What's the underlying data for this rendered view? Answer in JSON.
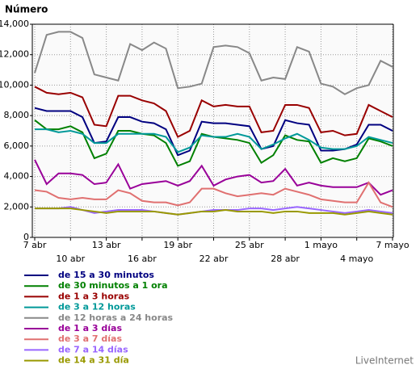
{
  "chart_data": {
    "type": "line",
    "y_label": "Número",
    "watermark": "LiveInternet",
    "categories": [
      "7 abr",
      null,
      null,
      "10 abr",
      null,
      null,
      "13 abr",
      null,
      null,
      "16 abr",
      null,
      null,
      "19 abr",
      null,
      null,
      "22 abr",
      null,
      null,
      "25 abr",
      null,
      null,
      "28 abr",
      null,
      null,
      "1 mayo",
      null,
      null,
      "4 mayo",
      null,
      null,
      "7 mayo"
    ],
    "ylim": [
      0,
      14000
    ],
    "yticks": [
      0,
      {
        "value": 2000,
        "label": "2,000"
      },
      {
        "value": 4000,
        "label": "4,000"
      },
      {
        "value": 6000,
        "label": "6,000"
      },
      {
        "value": 8000,
        "label": "8,000"
      },
      {
        "value": 10000,
        "label": "10,000"
      },
      {
        "value": 12000,
        "label": "12,000"
      },
      {
        "value": 14000,
        "label": "14,000"
      }
    ],
    "grid": true,
    "series": [
      {
        "name": "de 15 a 30 minutos",
        "color": "#000080",
        "values": [
          8500,
          8300,
          8300,
          8300,
          7900,
          6200,
          6300,
          7900,
          7900,
          7600,
          7500,
          7100,
          5400,
          5700,
          7600,
          7500,
          7500,
          7400,
          7300,
          5800,
          6000,
          7700,
          7500,
          7400,
          5700,
          5700,
          5800,
          6100,
          7400,
          7400,
          7000
        ]
      },
      {
        "name": "de 30 minutos a 1 ora",
        "color": "#008000",
        "values": [
          7700,
          7100,
          7100,
          7300,
          6900,
          5200,
          5500,
          7000,
          7000,
          6800,
          6700,
          6200,
          4700,
          5000,
          6800,
          6600,
          6500,
          6400,
          6200,
          4900,
          5400,
          6700,
          6400,
          6300,
          4900,
          5200,
          5000,
          5200,
          6500,
          6300,
          6000
        ]
      },
      {
        "name": "de 1 a 3 horas",
        "color": "#990000",
        "values": [
          9900,
          9500,
          9400,
          9500,
          9200,
          7400,
          7300,
          9300,
          9300,
          9000,
          8800,
          8300,
          6600,
          7000,
          9000,
          8600,
          8700,
          8600,
          8600,
          6900,
          7000,
          8700,
          8700,
          8500,
          6900,
          7000,
          6700,
          6800,
          8700,
          8300,
          7900
        ]
      },
      {
        "name": "de 3 a 12 horas",
        "color": "#009999",
        "values": [
          7100,
          7100,
          6900,
          7000,
          6800,
          6200,
          6200,
          6800,
          6800,
          6800,
          6800,
          6600,
          5600,
          5900,
          6700,
          6600,
          6600,
          6800,
          6600,
          5800,
          6100,
          6500,
          6800,
          6400,
          5900,
          5800,
          5800,
          6000,
          6600,
          6400,
          6200
        ]
      },
      {
        "name": "de 12 horas a 24 horas",
        "color": "#888888",
        "values": [
          10800,
          13300,
          13500,
          13500,
          13100,
          10700,
          10500,
          10300,
          12700,
          12300,
          12800,
          12400,
          9800,
          9900,
          10100,
          12500,
          12600,
          12500,
          12100,
          10300,
          10500,
          10400,
          12500,
          12200,
          10100,
          9900,
          9400,
          9800,
          10000,
          11600,
          11200
        ]
      },
      {
        "name": "de 1 a 3 días",
        "color": "#990099",
        "values": [
          5100,
          3500,
          4200,
          4200,
          4100,
          3500,
          3600,
          4800,
          3200,
          3500,
          3600,
          3700,
          3400,
          3700,
          4700,
          3400,
          3800,
          4000,
          4100,
          3600,
          3700,
          4500,
          3400,
          3600,
          3400,
          3300,
          3300,
          3300,
          3600,
          2800,
          3100
        ]
      },
      {
        "name": "de 3 a 7 días",
        "color": "#e07070",
        "values": [
          3100,
          3000,
          2600,
          2500,
          2600,
          2500,
          2500,
          3100,
          2900,
          2400,
          2300,
          2300,
          2100,
          2300,
          3200,
          3200,
          2900,
          2700,
          2800,
          2900,
          2800,
          3200,
          3000,
          2800,
          2500,
          2400,
          2300,
          2300,
          3600,
          2300,
          2000
        ]
      },
      {
        "name": "de 7 a 14 días",
        "color": "#9966ff",
        "values": [
          1900,
          1900,
          1900,
          2000,
          1800,
          1600,
          1700,
          1800,
          1800,
          1800,
          1700,
          1600,
          1500,
          1600,
          1700,
          1800,
          1800,
          1800,
          1900,
          1900,
          1800,
          1900,
          2000,
          1900,
          1800,
          1700,
          1600,
          1700,
          1800,
          1700,
          1600
        ]
      },
      {
        "name": "de 14 a 31 día",
        "color": "#999900",
        "values": [
          1900,
          1900,
          1900,
          1900,
          1800,
          1700,
          1600,
          1700,
          1700,
          1700,
          1700,
          1600,
          1500,
          1600,
          1700,
          1700,
          1800,
          1700,
          1700,
          1700,
          1600,
          1700,
          1700,
          1600,
          1600,
          1600,
          1500,
          1600,
          1700,
          1600,
          1500
        ]
      }
    ]
  }
}
